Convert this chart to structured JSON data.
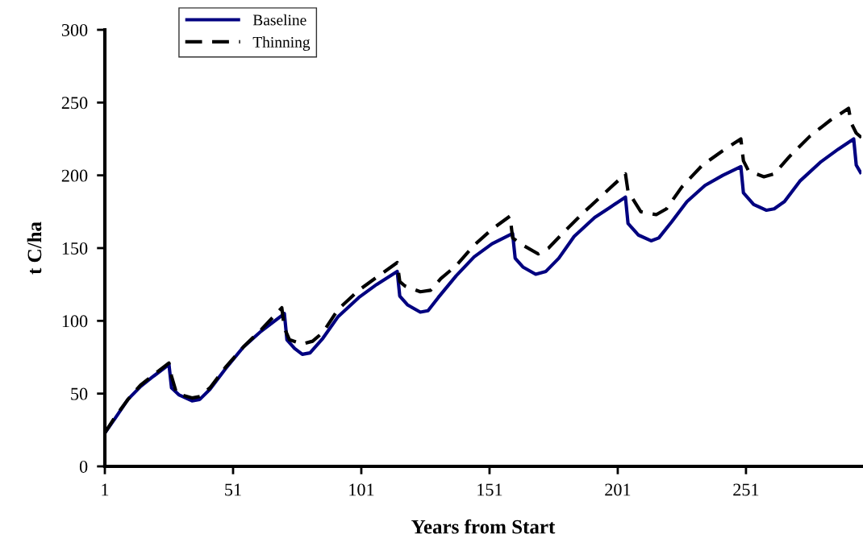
{
  "chart_data": {
    "type": "line",
    "xlabel": "Years from Start",
    "ylabel": "t C/ha",
    "xlim": [
      1,
      296
    ],
    "xticks": [
      1,
      51,
      101,
      151,
      201,
      251
    ],
    "ylim": [
      0,
      300
    ],
    "yticks": [
      0,
      50,
      100,
      150,
      200,
      250,
      300
    ],
    "grid": false,
    "legend": "top left",
    "marker": "none",
    "series": [
      {
        "name": "Baseline",
        "color": "#000080",
        "line_style": "solid",
        "x": [
          1,
          5,
          10,
          15,
          20,
          26,
          27,
          30,
          35,
          38,
          42,
          48,
          55,
          62,
          71,
          72,
          75,
          78,
          81,
          86,
          92,
          100,
          107,
          115,
          116,
          119,
          124,
          127,
          131,
          138,
          145,
          152,
          160,
          161,
          164,
          169,
          173,
          178,
          184,
          192,
          198,
          204,
          205,
          209,
          214,
          217,
          222,
          228,
          235,
          242,
          249,
          250,
          254,
          259,
          262,
          266,
          272,
          280,
          287,
          293,
          294,
          296
        ],
        "values": [
          23,
          33,
          46,
          55,
          62,
          70,
          54,
          49,
          45,
          46,
          53,
          67,
          82,
          93,
          105,
          87,
          81,
          77,
          78,
          88,
          103,
          116,
          125,
          134,
          117,
          111,
          106,
          107,
          116,
          131,
          144,
          153,
          160,
          143,
          137,
          132,
          134,
          143,
          158,
          171,
          178,
          185,
          167,
          159,
          155,
          157,
          168,
          182,
          193,
          200,
          206,
          188,
          180,
          176,
          177,
          182,
          196,
          209,
          218,
          225,
          207,
          201
        ]
      },
      {
        "name": "Thinning",
        "color": "#000000",
        "line_style": "dashed",
        "x": [
          1,
          5,
          10,
          15,
          20,
          26,
          27,
          29,
          35,
          38,
          42,
          48,
          55,
          62,
          70,
          71,
          73,
          78,
          82,
          86,
          92,
          100,
          107,
          115,
          116,
          118,
          124,
          128,
          132,
          138,
          145,
          152,
          159,
          160,
          164,
          170,
          174,
          180,
          188,
          196,
          204,
          205,
          210,
          216,
          220,
          226,
          234,
          242,
          249,
          250,
          252,
          258,
          262,
          268,
          276,
          284,
          291,
          292,
          294,
          296
        ],
        "values": [
          23,
          34,
          46,
          56,
          63,
          71,
          62,
          50,
          47,
          48,
          54,
          68,
          82,
          94,
          109,
          95,
          87,
          84,
          86,
          92,
          108,
          121,
          130,
          140,
          127,
          124,
          120,
          121,
          129,
          138,
          152,
          163,
          172,
          157,
          152,
          146,
          150,
          161,
          175,
          188,
          201,
          189,
          175,
          173,
          177,
          192,
          207,
          217,
          225,
          210,
          203,
          199,
          201,
          213,
          227,
          238,
          246,
          236,
          229,
          226
        ]
      }
    ]
  }
}
